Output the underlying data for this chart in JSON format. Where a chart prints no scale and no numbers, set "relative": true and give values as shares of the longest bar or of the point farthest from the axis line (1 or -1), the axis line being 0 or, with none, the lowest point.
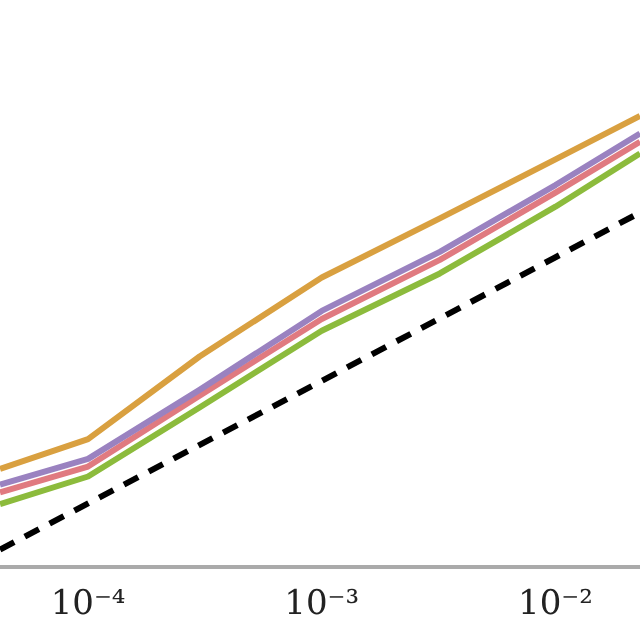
{
  "chart_data": {
    "type": "line",
    "relative": true,
    "log": "x",
    "grid": false,
    "legend": false,
    "tick_labels": "x",
    "marker": "none",
    "line_style": "solid",
    "xlim": [
      4.2e-05,
      0.023
    ],
    "xticks": [
      {
        "value": 0.0001,
        "label": "10⁻⁴"
      },
      {
        "value": 0.001,
        "label": "10⁻³"
      },
      {
        "value": 0.01,
        "label": "10⁻²"
      }
    ],
    "x": [
      4.2e-05,
      0.0001,
      0.0003,
      0.001,
      0.0032,
      0.01,
      0.023
    ],
    "series": [
      {
        "color": "#d9a040",
        "values": [
          0.218,
          0.284,
          0.467,
          0.642,
          0.773,
          0.904,
          1
        ]
      },
      {
        "color": "#9a82c0",
        "values": [
          0.183,
          0.24,
          0.393,
          0.568,
          0.699,
          0.847,
          0.961
        ]
      },
      {
        "color": "#e07a80",
        "values": [
          0.166,
          0.223,
          0.38,
          0.55,
          0.681,
          0.83,
          0.943
        ]
      },
      {
        "color": "#8cbb3c",
        "values": [
          0.14,
          0.201,
          0.354,
          0.524,
          0.651,
          0.799,
          0.917
        ]
      },
      {
        "color": "#000000",
        "line_style": "dashed",
        "x": [
          4.2e-05,
          0.001,
          0.023
        ],
        "values": [
          0.039,
          0.413,
          0.786
        ]
      }
    ]
  }
}
